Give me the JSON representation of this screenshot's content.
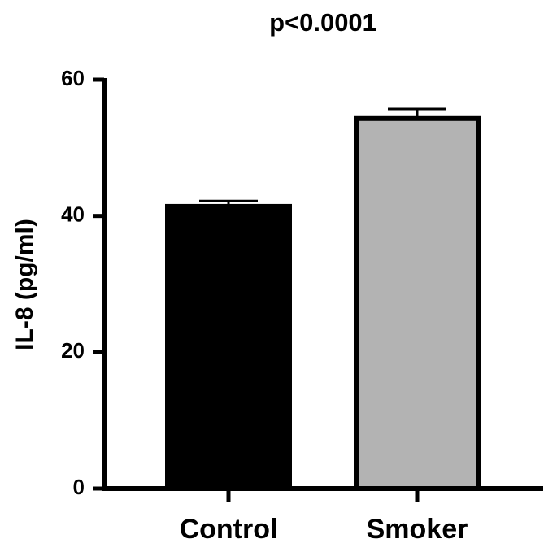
{
  "chart_data": {
    "type": "bar",
    "title": "p<0.0001",
    "y_label": "IL-8 (pg/ml)",
    "categories": [
      "Control",
      "Smoker"
    ],
    "values": [
      41.4,
      54.3
    ],
    "errors": [
      0.8,
      1.4
    ],
    "colors": [
      "#000000",
      "#b3b3b3"
    ],
    "ylim": [
      0,
      60
    ],
    "yticks": [
      0,
      20,
      40,
      60
    ],
    "grid": false
  }
}
